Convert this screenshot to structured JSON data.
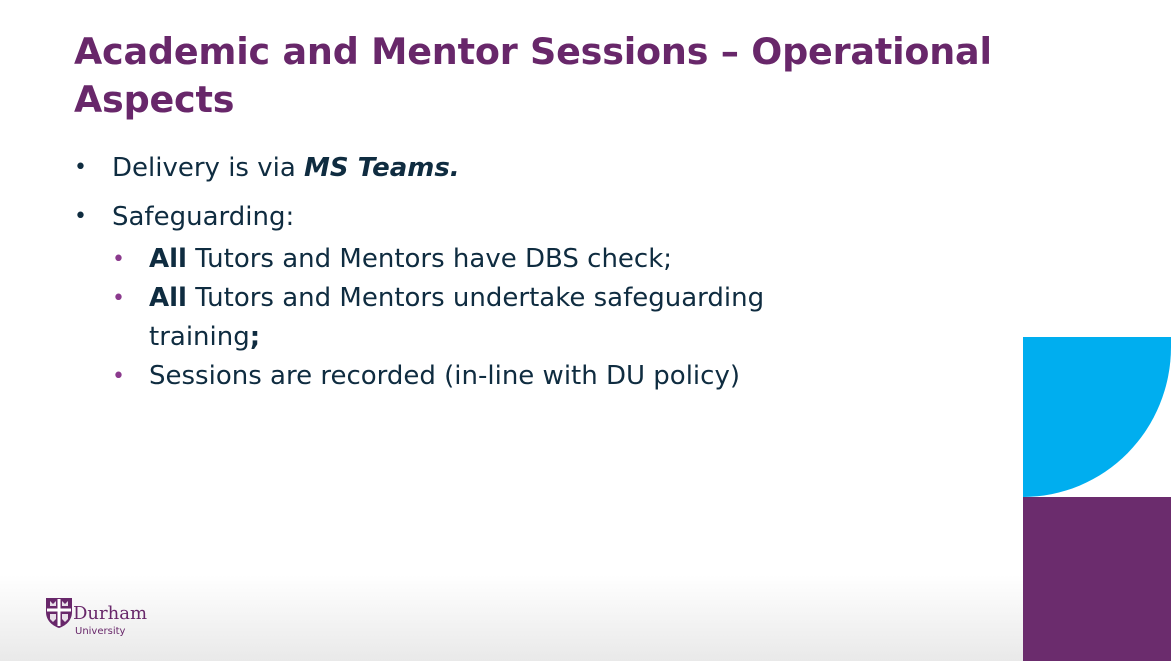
{
  "slide": {
    "title": "Academic and Mentor Sessions – Operational Aspects",
    "bullets": [
      {
        "text_before": "Delivery is via ",
        "emphasis": "MS Teams."
      },
      {
        "text": "Safeguarding:",
        "sub_bullets": [
          {
            "bold": "All",
            "text": " Tutors and Mentors have DBS check;"
          },
          {
            "bold": "All",
            "text": " Tutors and Mentors undertake safeguarding training",
            "bold_suffix": ";"
          },
          {
            "text": "Sessions are recorded (in-line with DU policy)"
          }
        ]
      }
    ]
  },
  "branding": {
    "logo_name": "Durham",
    "logo_sub": "University",
    "colors": {
      "title": "#68276a",
      "body_text": "#0f2c40",
      "sub_bullet": "#8b3a8d",
      "accent_blue": "#00aeef",
      "accent_purple": "#6b2c6d"
    }
  }
}
